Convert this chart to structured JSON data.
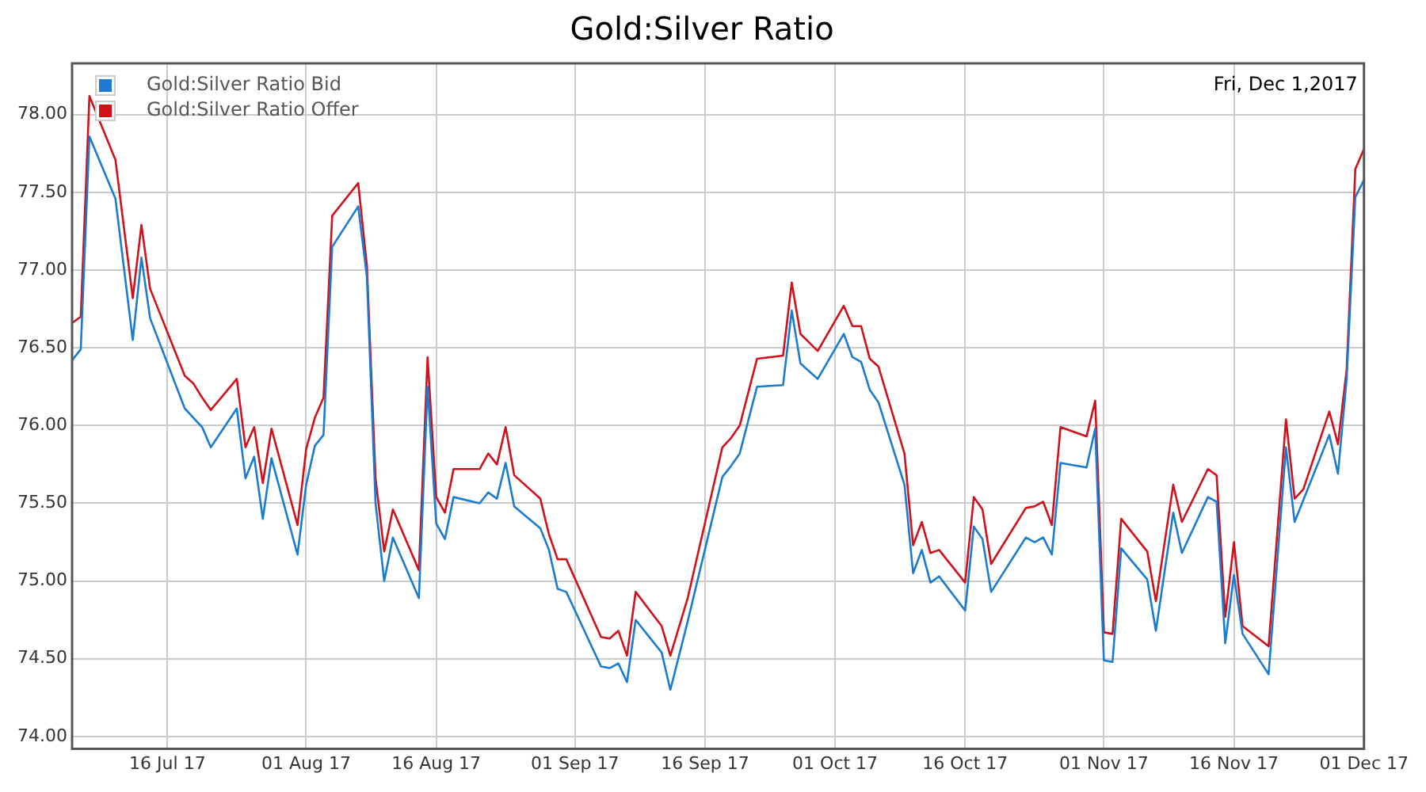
{
  "chart_data": {
    "type": "line",
    "title": "Gold:Silver Ratio",
    "annotations": [
      "Fri, Dec 1,2017"
    ],
    "x": [
      "2017-07-05",
      "2017-07-06",
      "2017-07-07",
      "2017-07-10",
      "2017-07-12",
      "2017-07-13",
      "2017-07-14",
      "2017-07-18",
      "2017-07-19",
      "2017-07-20",
      "2017-07-21",
      "2017-07-24",
      "2017-07-25",
      "2017-07-26",
      "2017-07-27",
      "2017-07-28",
      "2017-07-31",
      "2017-08-01",
      "2017-08-02",
      "2017-08-03",
      "2017-08-04",
      "2017-08-07",
      "2017-08-08",
      "2017-08-09",
      "2017-08-10",
      "2017-08-11",
      "2017-08-14",
      "2017-08-15",
      "2017-08-16",
      "2017-08-17",
      "2017-08-18",
      "2017-08-21",
      "2017-08-22",
      "2017-08-23",
      "2017-08-24",
      "2017-08-25",
      "2017-08-28",
      "2017-08-29",
      "2017-08-30",
      "2017-08-31",
      "2017-09-04",
      "2017-09-05",
      "2017-09-06",
      "2017-09-07",
      "2017-09-08",
      "2017-09-11",
      "2017-09-12",
      "2017-09-14",
      "2017-09-18",
      "2017-09-19",
      "2017-09-20",
      "2017-09-22",
      "2017-09-25",
      "2017-09-26",
      "2017-09-27",
      "2017-09-29",
      "2017-10-02",
      "2017-10-03",
      "2017-10-04",
      "2017-10-05",
      "2017-10-06",
      "2017-10-09",
      "2017-10-10",
      "2017-10-11",
      "2017-10-12",
      "2017-10-13",
      "2017-10-16",
      "2017-10-17",
      "2017-10-18",
      "2017-10-19",
      "2017-10-23",
      "2017-10-24",
      "2017-10-25",
      "2017-10-26",
      "2017-10-27",
      "2017-10-30",
      "2017-10-31",
      "2017-11-01",
      "2017-11-02",
      "2017-11-03",
      "2017-11-06",
      "2017-11-07",
      "2017-11-09",
      "2017-11-10",
      "2017-11-13",
      "2017-11-14",
      "2017-11-15",
      "2017-11-16",
      "2017-11-17",
      "2017-11-20",
      "2017-11-22",
      "2017-11-23",
      "2017-11-24",
      "2017-11-27",
      "2017-11-28",
      "2017-11-29",
      "2017-11-30",
      "2017-12-01"
    ],
    "series": [
      {
        "name": "Gold:Silver Ratio Bid",
        "color": "#1a7bd0",
        "values": [
          76.42,
          76.49,
          77.86,
          77.46,
          76.55,
          77.08,
          76.69,
          76.11,
          76.05,
          75.99,
          75.86,
          76.11,
          75.66,
          75.8,
          75.4,
          75.79,
          75.17,
          75.62,
          75.87,
          75.94,
          77.15,
          77.41,
          76.96,
          75.5,
          75.0,
          75.28,
          74.89,
          76.25,
          75.37,
          75.27,
          75.54,
          75.5,
          75.57,
          75.53,
          75.76,
          75.48,
          75.34,
          75.2,
          74.95,
          74.93,
          74.45,
          74.44,
          74.47,
          74.35,
          74.75,
          74.54,
          74.3,
          74.74,
          75.67,
          75.74,
          75.82,
          76.25,
          76.26,
          76.74,
          76.4,
          76.3,
          76.59,
          76.44,
          76.41,
          76.23,
          76.15,
          75.62,
          75.05,
          75.2,
          74.99,
          75.03,
          74.81,
          75.35,
          75.27,
          74.93,
          75.28,
          75.25,
          75.28,
          75.17,
          75.76,
          75.73,
          75.98,
          74.49,
          74.48,
          75.21,
          75.01,
          74.68,
          75.44,
          75.18,
          75.54,
          75.51,
          74.6,
          75.04,
          74.66,
          74.4,
          75.86,
          75.38,
          75.52,
          75.94,
          75.69,
          76.3,
          77.47,
          77.58
        ]
      },
      {
        "name": "Gold:Silver Ratio Offer",
        "color": "#d0101a",
        "values": [
          76.66,
          76.7,
          78.12,
          77.71,
          76.82,
          77.29,
          76.88,
          76.32,
          76.27,
          76.18,
          76.1,
          76.3,
          75.86,
          75.99,
          75.63,
          75.98,
          75.36,
          75.85,
          76.05,
          76.18,
          77.35,
          77.56,
          77.03,
          75.66,
          75.19,
          75.46,
          75.07,
          76.44,
          75.54,
          75.44,
          75.72,
          75.72,
          75.82,
          75.75,
          75.99,
          75.68,
          75.53,
          75.3,
          75.14,
          75.14,
          74.64,
          74.63,
          74.68,
          74.52,
          74.93,
          74.71,
          74.52,
          74.89,
          75.86,
          75.92,
          76.0,
          76.43,
          76.45,
          76.92,
          76.59,
          76.48,
          76.77,
          76.64,
          76.64,
          76.43,
          76.38,
          75.82,
          75.23,
          75.38,
          75.18,
          75.2,
          74.99,
          75.54,
          75.46,
          75.11,
          75.47,
          75.48,
          75.51,
          75.36,
          75.99,
          75.93,
          76.16,
          74.67,
          74.66,
          75.4,
          75.19,
          74.87,
          75.62,
          75.38,
          75.72,
          75.68,
          74.77,
          75.25,
          74.71,
          74.58,
          76.04,
          75.53,
          75.59,
          76.09,
          75.88,
          76.36,
          77.65,
          77.78
        ]
      }
    ],
    "xlim": [
      "2017-07-05",
      "2017-12-01"
    ],
    "xticks": [
      {
        "value": "2017-07-16",
        "label": "16 Jul 17"
      },
      {
        "value": "2017-08-01",
        "label": "01 Aug 17"
      },
      {
        "value": "2017-08-16",
        "label": "16 Aug 17"
      },
      {
        "value": "2017-09-01",
        "label": "01 Sep 17"
      },
      {
        "value": "2017-09-16",
        "label": "16 Sep 17"
      },
      {
        "value": "2017-10-01",
        "label": "01 Oct 17"
      },
      {
        "value": "2017-10-16",
        "label": "16 Oct 17"
      },
      {
        "value": "2017-11-01",
        "label": "01 Nov 17"
      },
      {
        "value": "2017-11-16",
        "label": "16 Nov 17"
      },
      {
        "value": "2017-12-01",
        "label": "01 Dec 17"
      }
    ],
    "ylim": [
      73.92,
      78.33
    ],
    "yticks": [
      {
        "value": 74,
        "label": "74.00"
      },
      {
        "value": 74.5,
        "label": "74.50"
      },
      {
        "value": 75,
        "label": "75.00"
      },
      {
        "value": 75.5,
        "label": "75.50"
      },
      {
        "value": 76,
        "label": "76.00"
      },
      {
        "value": 76.5,
        "label": "76.50"
      },
      {
        "value": 77,
        "label": "77.00"
      },
      {
        "value": 77.5,
        "label": "77.50"
      },
      {
        "value": 78,
        "label": "78.00"
      }
    ],
    "grid": true,
    "legend": "top left",
    "marker": "none",
    "line_style": "solid"
  }
}
